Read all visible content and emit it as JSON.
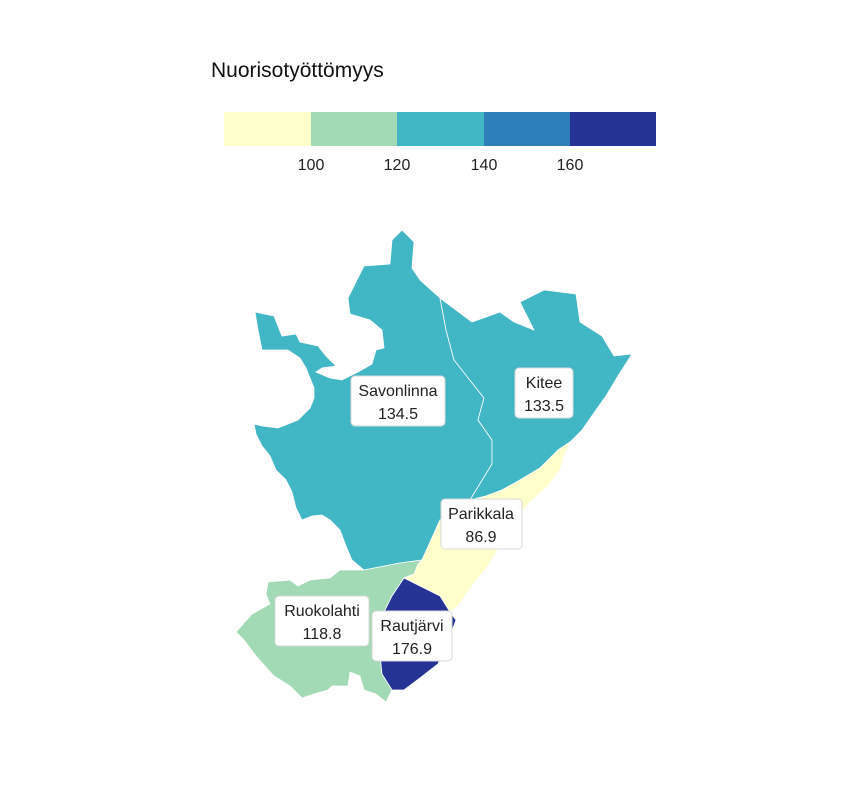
{
  "title": "Nuorisotyöttömyys",
  "legend": {
    "colors": [
      "#ffffcc",
      "#a1dab4",
      "#41b6c4",
      "#2c7fb8",
      "#253494"
    ],
    "thresholds": [
      "100",
      "120",
      "140",
      "160"
    ]
  },
  "regions": [
    {
      "name": "Savonlinna",
      "value": "134.5",
      "color": "#41b6c4"
    },
    {
      "name": "Kitee",
      "value": "133.5",
      "color": "#41b6c4"
    },
    {
      "name": "Parikkala",
      "value": "86.9",
      "color": "#ffffcc"
    },
    {
      "name": "Ruokolahti",
      "value": "118.8",
      "color": "#a1dab4"
    },
    {
      "name": "Rautjärvi",
      "value": "176.9",
      "color": "#253494"
    }
  ]
}
